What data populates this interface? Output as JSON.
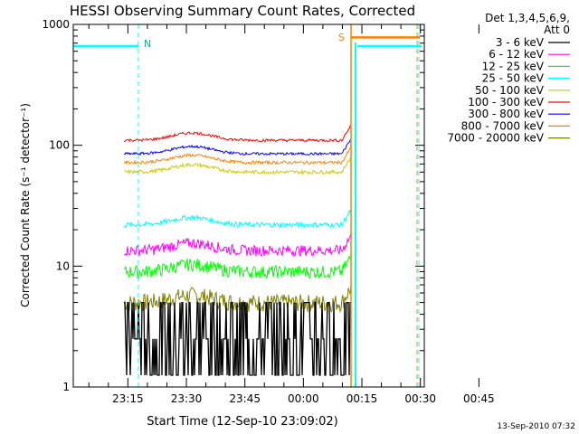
{
  "chart_data": {
    "type": "line",
    "title": "HESSI Observing Summary Count Rates, Corrected",
    "xlabel": "Start Time (12-Sep-10 23:09:02)",
    "ylabel": "Corrected Count Rate (s⁻¹ detector⁻¹)",
    "ylim": [
      1,
      1000
    ],
    "yscale": "log",
    "y_ticks": [
      {
        "label": "1",
        "value": 1
      },
      {
        "label": "10",
        "value": 10
      },
      {
        "label": "100",
        "value": 100
      },
      {
        "label": "1000",
        "value": 1000
      }
    ],
    "x_range_minutes": [
      -14,
      76
    ],
    "x_ticks": [
      {
        "label": "23:15",
        "minutes": 0
      },
      {
        "label": "23:30",
        "minutes": 15
      },
      {
        "label": "23:45",
        "minutes": 30
      },
      {
        "label": "00:00",
        "minutes": 45
      },
      {
        "label": "00:15",
        "minutes": 60
      },
      {
        "label": "00:30",
        "minutes": 75
      },
      {
        "label": "00:45",
        "minutes": 90
      }
    ],
    "legend": {
      "header": [
        "Det 1,3,4,5,6,9,",
        "Att 0"
      ],
      "placement": "right"
    },
    "series": [
      {
        "name": "3 - 6 keV",
        "color": "#000000",
        "base": 2.5,
        "spread": 1.5
      },
      {
        "name": "6 - 12 keV",
        "color": "#ff00ff",
        "base": 13.5,
        "spread": 2.0
      },
      {
        "name": "12 - 25 keV",
        "color": "#00ff00",
        "base": 9.0,
        "spread": 1.6
      },
      {
        "name": "25 - 50 keV",
        "color": "#00ffff",
        "base": 22.0,
        "spread": 1.5
      },
      {
        "name": "50 - 100 keV",
        "color": "#cccc00",
        "base": 60.0,
        "spread": 3.0
      },
      {
        "name": "100 - 300 keV",
        "color": "#ff0000",
        "base": 110.0,
        "spread": 4.0
      },
      {
        "name": "300 - 800 keV",
        "color": "#0000ff",
        "base": 85.0,
        "spread": 3.0
      },
      {
        "name": "800 - 7000 keV",
        "color": "#ff8000",
        "base": 72.0,
        "spread": 3.0
      },
      {
        "name": "7000 - 20000 keV",
        "color": "#808000",
        "base": 5.0,
        "spread": 1.2
      }
    ],
    "flags": [
      {
        "label": "N",
        "color": "#00ffff",
        "text_color": "#00aaaa"
      },
      {
        "label": "S",
        "color": "#ff8000",
        "text_color": "#ff8000"
      }
    ]
  },
  "footer": {
    "timestamp": "13-Sep-2010 07:32"
  }
}
